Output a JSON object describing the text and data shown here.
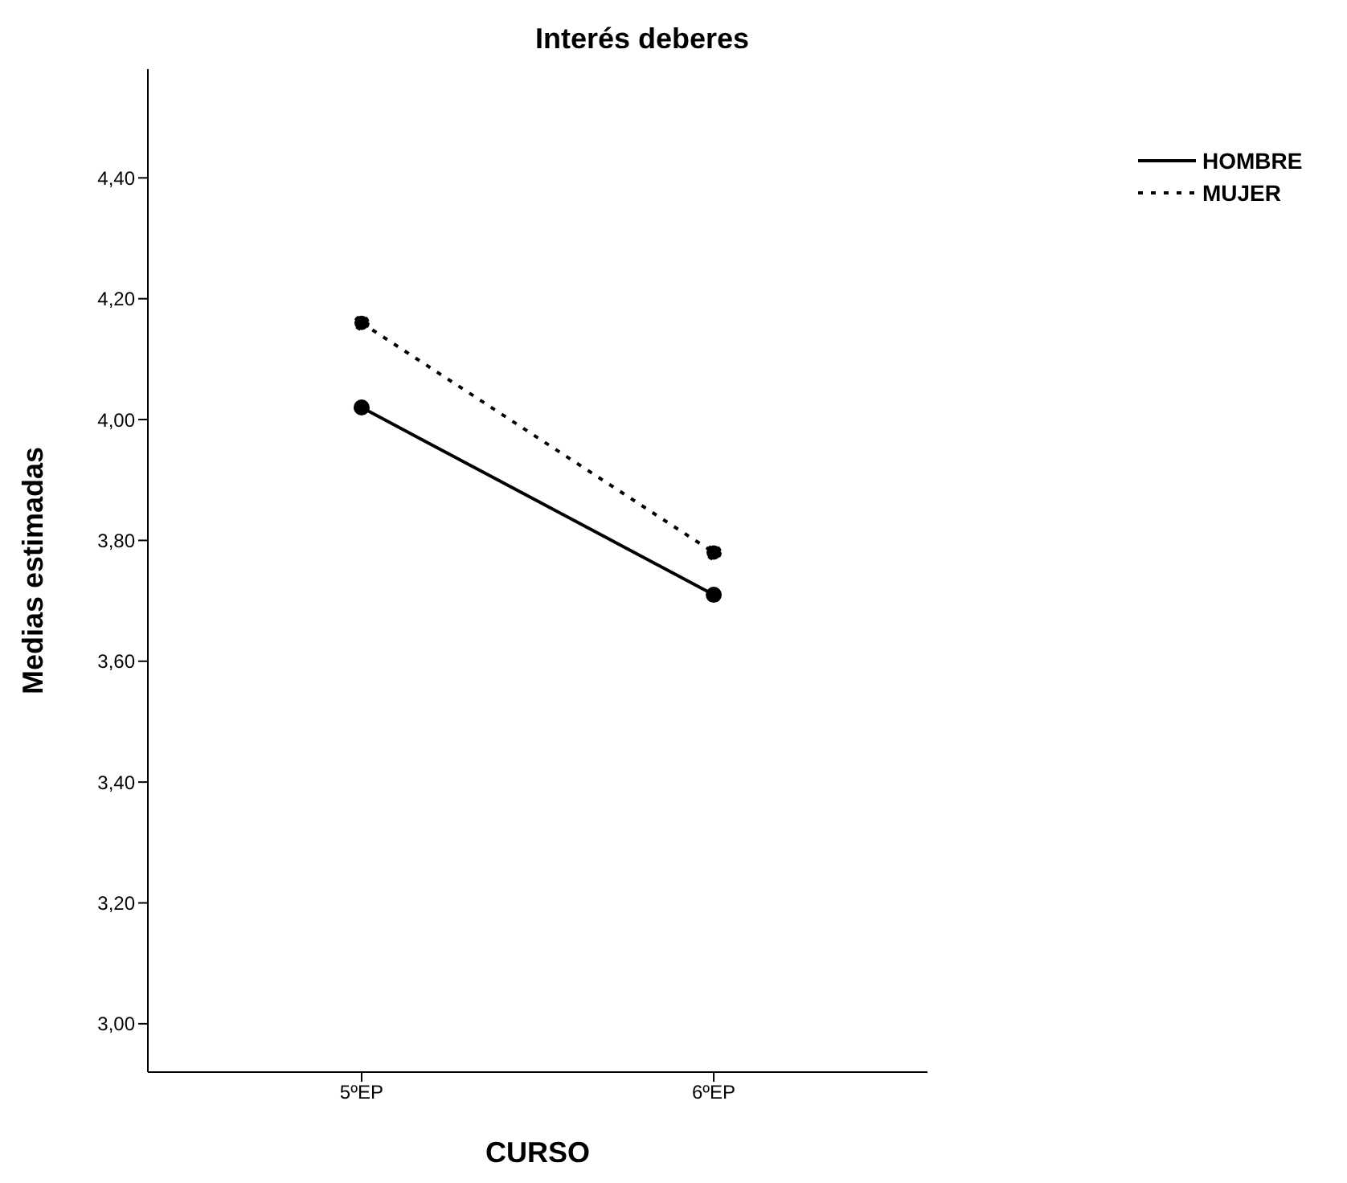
{
  "chart_data": {
    "type": "line",
    "title": "Interés deberes",
    "xlabel": "CURSO",
    "ylabel": "Medias  estimadas",
    "categories": [
      "5ºEP",
      "6ºEP"
    ],
    "series": [
      {
        "name": "HOMBRE",
        "color": "#000000",
        "values": [
          4.02,
          3.71
        ],
        "line_style": "solid"
      },
      {
        "name": "MUJER",
        "color": "#000000",
        "values": [
          4.16,
          3.78
        ],
        "line_style": "dotted"
      }
    ],
    "ylim": [
      2.92,
      4.58
    ],
    "yticks": [
      {
        "value": 3.0,
        "label": "3,00"
      },
      {
        "value": 3.2,
        "label": "3,20"
      },
      {
        "value": 3.4,
        "label": "3,40"
      },
      {
        "value": 3.6,
        "label": "3,60"
      },
      {
        "value": 3.8,
        "label": "3,80"
      },
      {
        "value": 4.0,
        "label": "4,00"
      },
      {
        "value": 4.2,
        "label": "4,20"
      },
      {
        "value": 4.4,
        "label": "4,40"
      }
    ],
    "grid": false,
    "legend": "top right",
    "marker": "circle"
  }
}
